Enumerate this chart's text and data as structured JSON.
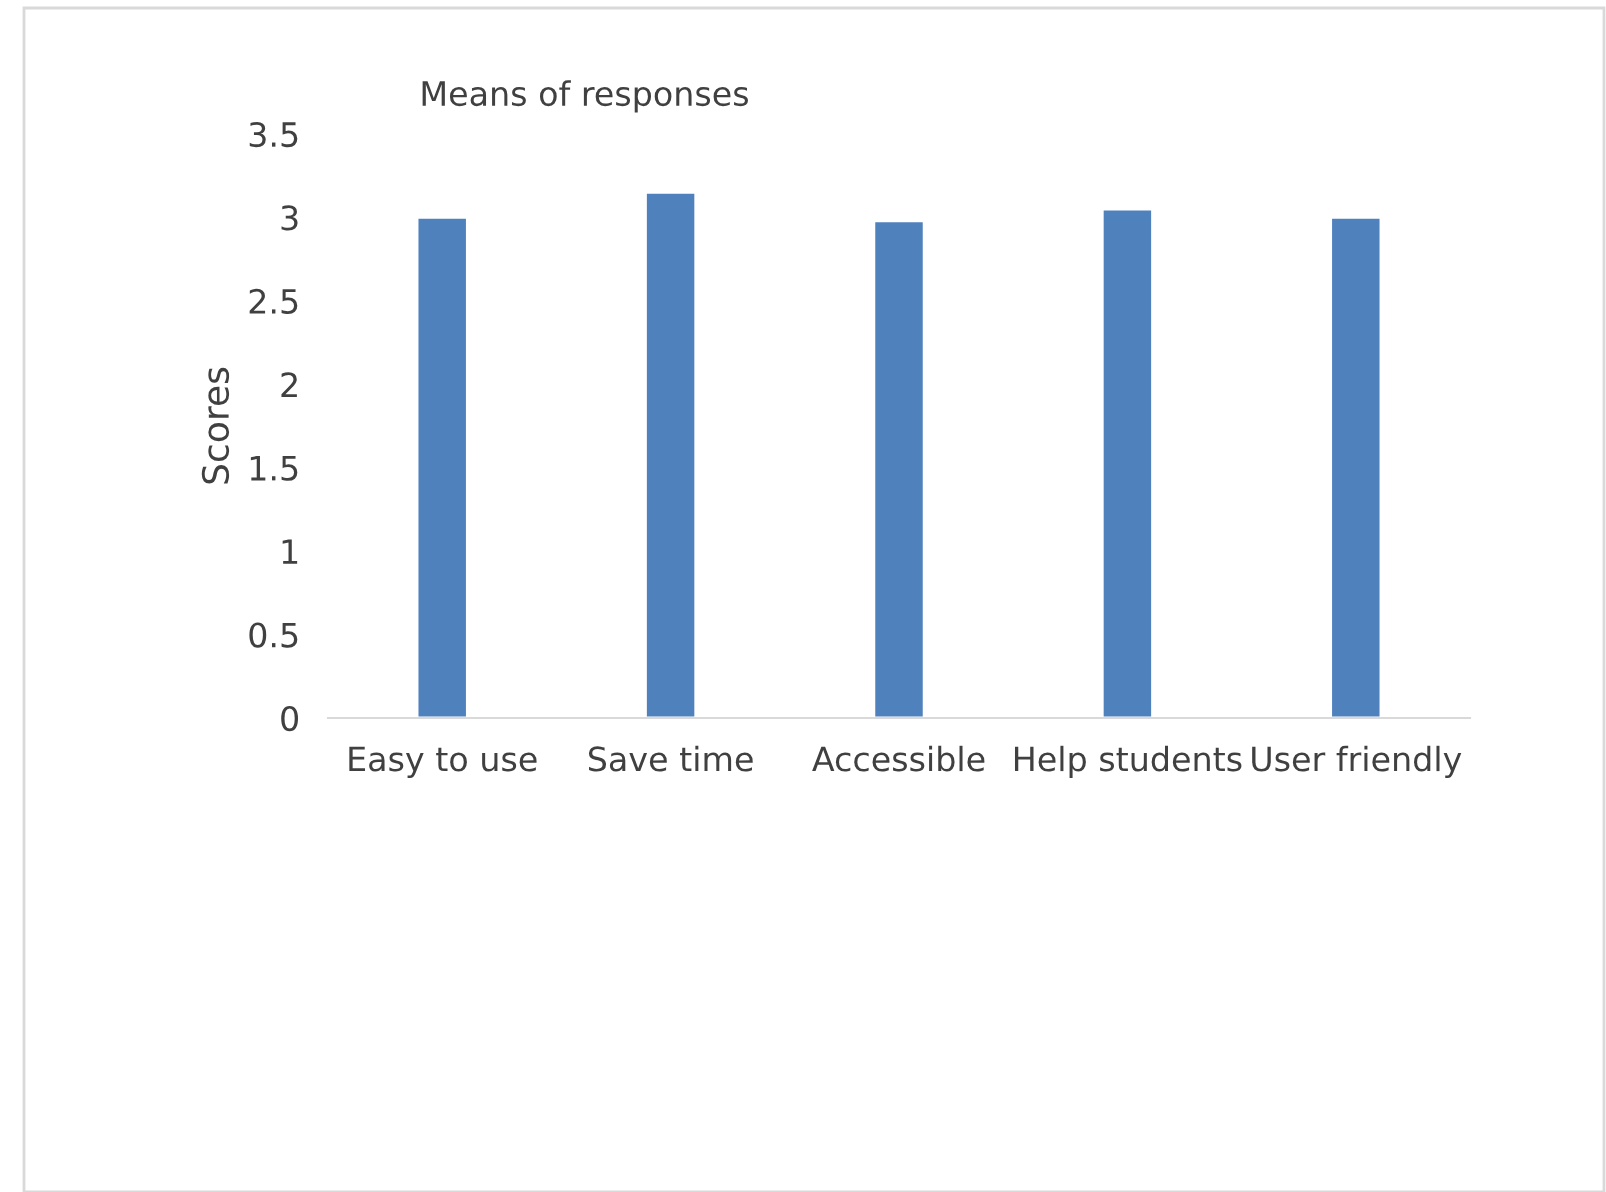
{
  "chart_data": {
    "type": "bar",
    "title": "Means of responses",
    "ylabel": "Scores",
    "categories": [
      "Easy to use",
      "Save time",
      "Accessible",
      "Help students",
      "User friendly"
    ],
    "values": [
      3.0,
      3.15,
      2.98,
      3.05,
      3.0
    ],
    "color": "#4f81bd",
    "ylim": [
      0,
      3.5
    ],
    "yticks": [
      0,
      0.5,
      1,
      1.5,
      2,
      2.5,
      3,
      3.5
    ],
    "grid": false
  }
}
